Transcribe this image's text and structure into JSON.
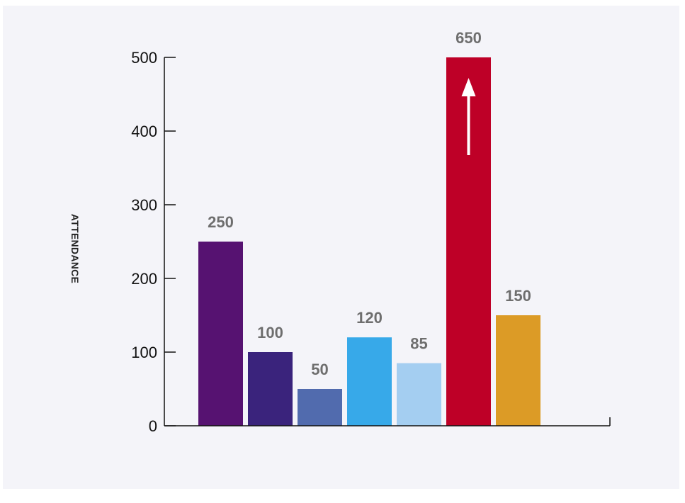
{
  "chart_data": {
    "type": "bar",
    "title": "",
    "xlabel": "",
    "ylabel": "ATTENDANCE",
    "ylim": [
      0,
      500
    ],
    "y_ticks": [
      0,
      100,
      200,
      300,
      400,
      500
    ],
    "grid": false,
    "legend": "none",
    "values": [
      250,
      100,
      50,
      120,
      85,
      650,
      150
    ],
    "value_labels": [
      "250",
      "100",
      "50",
      "120",
      "85",
      "650",
      "150"
    ],
    "colors": [
      "#561271",
      "#3a237c",
      "#516bae",
      "#37a9e9",
      "#a4cef1",
      "#be0027",
      "#dc9b26"
    ],
    "annotations": [
      {
        "bar_index": 5,
        "type": "arrow-up",
        "meaning": "value exceeds axis range",
        "color": "#ffffff"
      }
    ],
    "axis_color": "#111111",
    "background": "#f4f4f9"
  }
}
